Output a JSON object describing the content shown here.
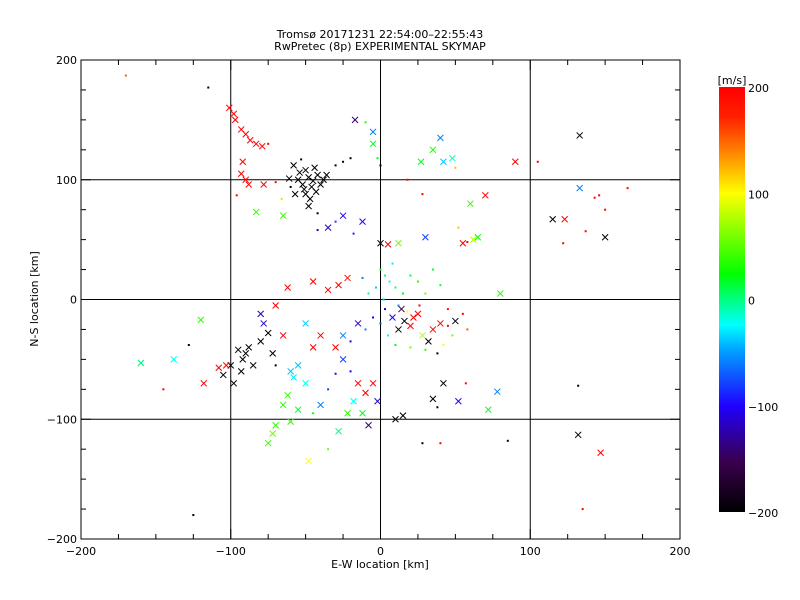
{
  "chart_data": {
    "type": "scatter",
    "title": "Tromsø 20171231 22:54:00–22:55:43",
    "subtitle": "RwPretec (8p) EXPERIMENTAL SKYMAP",
    "xlabel": "E-W location [km]",
    "ylabel": "N-S location [km]",
    "xlim": [
      -200,
      200
    ],
    "ylim": [
      -200,
      200
    ],
    "xticks": [
      {
        "v": -200,
        "label": "−200"
      },
      {
        "v": -100,
        "label": "−100"
      },
      {
        "v": 0,
        "label": "0"
      },
      {
        "v": 100,
        "label": "100"
      },
      {
        "v": 200,
        "label": "200"
      }
    ],
    "yticks": [
      {
        "v": -200,
        "label": "−200"
      },
      {
        "v": -100,
        "label": "−100"
      },
      {
        "v": 0,
        "label": "0"
      },
      {
        "v": 100,
        "label": "100"
      },
      {
        "v": 200,
        "label": "200"
      }
    ],
    "grid": true,
    "colorbar": {
      "label": "[m/s]",
      "range": [
        -200,
        200
      ],
      "ticks": [
        {
          "v": 200,
          "label": "200"
        },
        {
          "v": 100,
          "label": "100"
        },
        {
          "v": 0,
          "label": "0"
        },
        {
          "v": -100,
          "label": "−100"
        },
        {
          "v": -200,
          "label": "−200"
        }
      ]
    },
    "points_format": [
      "x_km",
      "y_km",
      "velocity_m_s",
      "marker"
    ],
    "points": [
      [
        -170,
        187,
        150,
        "d"
      ],
      [
        -115,
        177,
        -200,
        "d"
      ],
      [
        -101,
        160,
        200,
        "x"
      ],
      [
        -98,
        155,
        200,
        "x"
      ],
      [
        -97,
        150,
        200,
        "x"
      ],
      [
        -93,
        142,
        200,
        "x"
      ],
      [
        -90,
        138,
        200,
        "x"
      ],
      [
        -87,
        133,
        200,
        "x"
      ],
      [
        -83,
        130,
        200,
        "x"
      ],
      [
        -79,
        128,
        190,
        "x"
      ],
      [
        -75,
        130,
        200,
        "d"
      ],
      [
        -92,
        115,
        200,
        "x"
      ],
      [
        -93,
        105,
        200,
        "x"
      ],
      [
        -90,
        100,
        190,
        "x"
      ],
      [
        -88,
        96,
        200,
        "x"
      ],
      [
        -96,
        87,
        200,
        "d"
      ],
      [
        -78,
        96,
        200,
        "x"
      ],
      [
        -70,
        98,
        200,
        "d"
      ],
      [
        -66,
        84,
        80,
        "d"
      ],
      [
        -83,
        73,
        40,
        "x"
      ],
      [
        -65,
        70,
        40,
        "x"
      ],
      [
        -50,
        108,
        -200,
        "x"
      ],
      [
        -48,
        102,
        -200,
        "x"
      ],
      [
        -52,
        96,
        -200,
        "x"
      ],
      [
        -46,
        94,
        -200,
        "x"
      ],
      [
        -55,
        100,
        -200,
        "x"
      ],
      [
        -44,
        110,
        -200,
        "x"
      ],
      [
        -58,
        112,
        -200,
        "x"
      ],
      [
        -42,
        104,
        -200,
        "x"
      ],
      [
        -50,
        88,
        -200,
        "x"
      ],
      [
        -47,
        84,
        -200,
        "x"
      ],
      [
        -40,
        96,
        -200,
        "x"
      ],
      [
        -60,
        94,
        -200,
        "d"
      ],
      [
        -38,
        100,
        -200,
        "x"
      ],
      [
        -53,
        117,
        -200,
        "d"
      ],
      [
        -30,
        112,
        -200,
        "d"
      ],
      [
        -25,
        115,
        -200,
        "d"
      ],
      [
        -20,
        118,
        -200,
        "d"
      ],
      [
        -48,
        78,
        -200,
        "x"
      ],
      [
        -42,
        72,
        -200,
        "d"
      ],
      [
        -36,
        104,
        -200,
        "x"
      ],
      [
        -45,
        99,
        -200,
        "x"
      ],
      [
        -54,
        106,
        -200,
        "x"
      ],
      [
        -51,
        92,
        -200,
        "x"
      ],
      [
        -61,
        101,
        -200,
        "x"
      ],
      [
        -43,
        90,
        -200,
        "x"
      ],
      [
        -57,
        88,
        -200,
        "x"
      ],
      [
        -17,
        150,
        -140,
        "x"
      ],
      [
        -10,
        148,
        40,
        "d"
      ],
      [
        -5,
        140,
        -60,
        "x"
      ],
      [
        -5,
        130,
        20,
        "x"
      ],
      [
        -2,
        118,
        20,
        "d"
      ],
      [
        0,
        112,
        -200,
        "d"
      ],
      [
        -25,
        70,
        -100,
        "x"
      ],
      [
        -30,
        65,
        -80,
        "d"
      ],
      [
        -35,
        60,
        -120,
        "x"
      ],
      [
        -12,
        65,
        -100,
        "x"
      ],
      [
        -18,
        55,
        -90,
        "d"
      ],
      [
        -42,
        58,
        -110,
        "d"
      ],
      [
        27,
        115,
        20,
        "x"
      ],
      [
        40,
        135,
        -60,
        "x"
      ],
      [
        42,
        115,
        -40,
        "x"
      ],
      [
        48,
        118,
        -10,
        "x"
      ],
      [
        50,
        110,
        120,
        "d"
      ],
      [
        35,
        125,
        30,
        "x"
      ],
      [
        18,
        100,
        200,
        "d"
      ],
      [
        28,
        88,
        200,
        "d"
      ],
      [
        70,
        87,
        200,
        "x"
      ],
      [
        60,
        80,
        40,
        "x"
      ],
      [
        90,
        115,
        200,
        "x"
      ],
      [
        105,
        115,
        200,
        "d"
      ],
      [
        133,
        137,
        -200,
        "x"
      ],
      [
        133,
        93,
        -60,
        "x"
      ],
      [
        143,
        85,
        200,
        "d"
      ],
      [
        146,
        87,
        200,
        "d"
      ],
      [
        150,
        75,
        200,
        "d"
      ],
      [
        165,
        93,
        200,
        "d"
      ],
      [
        115,
        67,
        -200,
        "x"
      ],
      [
        123,
        67,
        200,
        "x"
      ],
      [
        150,
        52,
        -200,
        "x"
      ],
      [
        137,
        57,
        200,
        "d"
      ],
      [
        122,
        47,
        200,
        "d"
      ],
      [
        0,
        47,
        -200,
        "x"
      ],
      [
        5,
        46,
        200,
        "x"
      ],
      [
        12,
        47,
        60,
        "x"
      ],
      [
        30,
        52,
        -80,
        "x"
      ],
      [
        55,
        47,
        200,
        "x"
      ],
      [
        58,
        48,
        200,
        "d"
      ],
      [
        62,
        50,
        80,
        "x"
      ],
      [
        65,
        52,
        30,
        "x"
      ],
      [
        80,
        5,
        40,
        "x"
      ],
      [
        52,
        60,
        120,
        "d"
      ],
      [
        0,
        25,
        20,
        "d"
      ],
      [
        3,
        20,
        0,
        "d"
      ],
      [
        6,
        15,
        -20,
        "d"
      ],
      [
        -3,
        10,
        -40,
        "d"
      ],
      [
        10,
        10,
        0,
        "d"
      ],
      [
        15,
        5,
        20,
        "d"
      ],
      [
        -8,
        5,
        -10,
        "d"
      ],
      [
        2,
        0,
        -40,
        "d"
      ],
      [
        20,
        20,
        10,
        "d"
      ],
      [
        25,
        15,
        40,
        "d"
      ],
      [
        8,
        30,
        -30,
        "d"
      ],
      [
        -12,
        18,
        -60,
        "d"
      ],
      [
        30,
        5,
        60,
        "d"
      ],
      [
        35,
        25,
        20,
        "d"
      ],
      [
        40,
        12,
        10,
        "d"
      ],
      [
        12,
        -5,
        -50,
        "d"
      ],
      [
        18,
        -10,
        100,
        "d"
      ],
      [
        22,
        -15,
        200,
        "x"
      ],
      [
        16,
        -18,
        -200,
        "x"
      ],
      [
        20,
        -22,
        200,
        "x"
      ],
      [
        25,
        -12,
        200,
        "x"
      ],
      [
        12,
        -25,
        -200,
        "x"
      ],
      [
        28,
        -30,
        80,
        "x"
      ],
      [
        32,
        -35,
        -200,
        "x"
      ],
      [
        35,
        -25,
        200,
        "x"
      ],
      [
        40,
        -20,
        200,
        "x"
      ],
      [
        45,
        -22,
        200,
        "d"
      ],
      [
        50,
        -18,
        -200,
        "x"
      ],
      [
        48,
        -30,
        60,
        "d"
      ],
      [
        42,
        -38,
        100,
        "d"
      ],
      [
        38,
        -45,
        -200,
        "d"
      ],
      [
        30,
        -42,
        40,
        "d"
      ],
      [
        20,
        -40,
        60,
        "d"
      ],
      [
        10,
        -38,
        20,
        "d"
      ],
      [
        5,
        -30,
        -20,
        "d"
      ],
      [
        0,
        -20,
        -80,
        "d"
      ],
      [
        -5,
        -15,
        -100,
        "d"
      ],
      [
        -10,
        -25,
        -60,
        "d"
      ],
      [
        -15,
        -20,
        -120,
        "x"
      ],
      [
        -20,
        -35,
        -100,
        "d"
      ],
      [
        8,
        -15,
        -100,
        "x"
      ],
      [
        14,
        -8,
        -160,
        "x"
      ],
      [
        3,
        -8,
        -120,
        "d"
      ],
      [
        26,
        -5,
        200,
        "d"
      ],
      [
        45,
        -8,
        180,
        "d"
      ],
      [
        55,
        -12,
        200,
        "d"
      ],
      [
        58,
        -25,
        150,
        "d"
      ],
      [
        -28,
        12,
        200,
        "x"
      ],
      [
        -22,
        18,
        180,
        "x"
      ],
      [
        -35,
        8,
        200,
        "x"
      ],
      [
        -45,
        15,
        200,
        "x"
      ],
      [
        -70,
        -5,
        200,
        "x"
      ],
      [
        -62,
        10,
        200,
        "x"
      ],
      [
        -90,
        -45,
        -200,
        "x"
      ],
      [
        -92,
        -50,
        -200,
        "x"
      ],
      [
        -88,
        -40,
        -200,
        "x"
      ],
      [
        -85,
        -55,
        -200,
        "x"
      ],
      [
        -95,
        -42,
        -200,
        "x"
      ],
      [
        -93,
        -60,
        -200,
        "x"
      ],
      [
        -100,
        -55,
        -200,
        "x"
      ],
      [
        -105,
        -63,
        -200,
        "x"
      ],
      [
        -98,
        -70,
        -200,
        "x"
      ],
      [
        -80,
        -35,
        -200,
        "x"
      ],
      [
        -75,
        -28,
        -200,
        "x"
      ],
      [
        -72,
        -45,
        -200,
        "x"
      ],
      [
        -70,
        -55,
        -200,
        "d"
      ],
      [
        -78,
        -20,
        -120,
        "x"
      ],
      [
        -80,
        -12,
        -120,
        "x"
      ],
      [
        -103,
        -55,
        200,
        "x"
      ],
      [
        -108,
        -57,
        200,
        "x"
      ],
      [
        -118,
        -70,
        200,
        "x"
      ],
      [
        -160,
        -53,
        0,
        "x"
      ],
      [
        -138,
        -50,
        -20,
        "x"
      ],
      [
        -120,
        -17,
        40,
        "x"
      ],
      [
        -160,
        -53,
        0,
        "x"
      ],
      [
        -128,
        -38,
        -200,
        "d"
      ],
      [
        -145,
        -75,
        200,
        "d"
      ],
      [
        -55,
        -55,
        -40,
        "x"
      ],
      [
        -60,
        -60,
        -40,
        "x"
      ],
      [
        -58,
        -65,
        -30,
        "x"
      ],
      [
        -50,
        -70,
        -20,
        "x"
      ],
      [
        -62,
        -80,
        40,
        "x"
      ],
      [
        -65,
        -88,
        40,
        "x"
      ],
      [
        -55,
        -92,
        20,
        "x"
      ],
      [
        -60,
        -102,
        40,
        "x"
      ],
      [
        -70,
        -105,
        40,
        "x"
      ],
      [
        -75,
        -120,
        40,
        "x"
      ],
      [
        -72,
        -112,
        60,
        "x"
      ],
      [
        -45,
        -95,
        30,
        "d"
      ],
      [
        -40,
        -88,
        -60,
        "x"
      ],
      [
        -35,
        -75,
        -80,
        "d"
      ],
      [
        -30,
        -62,
        -100,
        "d"
      ],
      [
        -25,
        -50,
        -80,
        "x"
      ],
      [
        -20,
        -60,
        -100,
        "d"
      ],
      [
        -15,
        -70,
        200,
        "x"
      ],
      [
        -10,
        -78,
        200,
        "x"
      ],
      [
        -18,
        -85,
        -20,
        "x"
      ],
      [
        -22,
        -95,
        40,
        "x"
      ],
      [
        -28,
        -110,
        0,
        "x"
      ],
      [
        -12,
        -95,
        20,
        "x"
      ],
      [
        -5,
        -70,
        200,
        "x"
      ],
      [
        -2,
        -85,
        -120,
        "x"
      ],
      [
        -8,
        -105,
        -140,
        "x"
      ],
      [
        -48,
        -135,
        100,
        "x"
      ],
      [
        -35,
        -125,
        60,
        "d"
      ],
      [
        -45,
        -40,
        200,
        "x"
      ],
      [
        -40,
        -30,
        200,
        "x"
      ],
      [
        -30,
        -40,
        200,
        "x"
      ],
      [
        -25,
        -30,
        -60,
        "x"
      ],
      [
        -50,
        -20,
        -40,
        "x"
      ],
      [
        -65,
        -30,
        200,
        "x"
      ],
      [
        10,
        -100,
        -200,
        "x"
      ],
      [
        15,
        -97,
        -200,
        "x"
      ],
      [
        28,
        -120,
        -200,
        "d"
      ],
      [
        40,
        -120,
        200,
        "d"
      ],
      [
        35,
        -83,
        -200,
        "x"
      ],
      [
        38,
        -90,
        -200,
        "d"
      ],
      [
        42,
        -70,
        -200,
        "x"
      ],
      [
        52,
        -85,
        -100,
        "x"
      ],
      [
        57,
        -70,
        200,
        "d"
      ],
      [
        72,
        -92,
        20,
        "x"
      ],
      [
        78,
        -77,
        -60,
        "x"
      ],
      [
        85,
        -118,
        -200,
        "d"
      ],
      [
        132,
        -113,
        -200,
        "x"
      ],
      [
        147,
        -128,
        200,
        "x"
      ],
      [
        135,
        -175,
        200,
        "d"
      ],
      [
        -125,
        -180,
        -200,
        "d"
      ],
      [
        132,
        -72,
        -200,
        "d"
      ]
    ]
  }
}
